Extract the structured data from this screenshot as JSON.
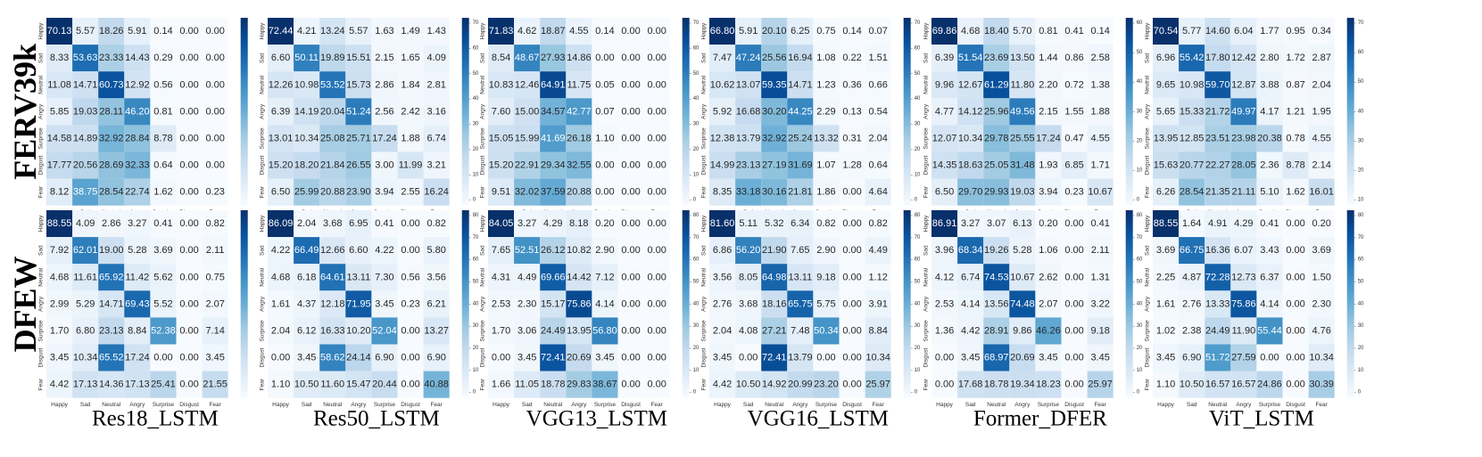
{
  "figure": {
    "row_labels": [
      "FERV39k",
      "DFEW"
    ],
    "model_names": [
      "Res18_LSTM",
      "Res50_LSTM",
      "VGG13_LSTM",
      "VGG16_LSTM",
      "Former_DFER",
      "ViT_LSTM"
    ],
    "classes": [
      "Happy",
      "Sad",
      "Neutral",
      "Angry",
      "Surprise",
      "Disgust",
      "Fear"
    ]
  },
  "colors": {
    "low": "#f7fbff",
    "high": "#08306b",
    "dark_text": "#262626",
    "light_text": "#ffffff"
  },
  "chart_data": [
    {
      "type": "heatmap",
      "dataset": "FERV39k",
      "model": "Res18_LSTM",
      "categories": [
        "Happy",
        "Sad",
        "Neutral",
        "Angry",
        "Surprise",
        "Disgust",
        "Fear"
      ],
      "values": [
        [
          70.13,
          5.57,
          18.26,
          5.91,
          0.14,
          0.0,
          0.0
        ],
        [
          8.33,
          53.63,
          23.33,
          14.43,
          0.29,
          0.0,
          0.0
        ],
        [
          11.08,
          14.71,
          60.73,
          12.92,
          0.56,
          0.0,
          0.0
        ],
        [
          5.85,
          19.03,
          28.11,
          46.2,
          0.81,
          0.0,
          0.0
        ],
        [
          14.58,
          14.89,
          32.92,
          28.84,
          8.78,
          0.0,
          0.0
        ],
        [
          17.77,
          20.56,
          28.69,
          32.33,
          0.64,
          0.0,
          0.0
        ],
        [
          8.12,
          38.75,
          28.54,
          22.74,
          1.62,
          0.0,
          0.23
        ]
      ],
      "colorbar_ticks": []
    },
    {
      "type": "heatmap",
      "dataset": "FERV39k",
      "model": "Res50_LSTM",
      "categories": [
        "Happy",
        "Sad",
        "Neutral",
        "Angry",
        "Surprise",
        "Disgust",
        "Fear"
      ],
      "values": [
        [
          72.44,
          4.21,
          13.24,
          5.57,
          1.63,
          1.49,
          1.43
        ],
        [
          6.6,
          50.11,
          19.89,
          15.51,
          2.15,
          1.65,
          4.09
        ],
        [
          12.26,
          10.98,
          53.52,
          15.73,
          2.86,
          1.84,
          2.81
        ],
        [
          6.39,
          14.19,
          20.04,
          51.24,
          2.56,
          2.42,
          3.16
        ],
        [
          13.01,
          10.34,
          25.08,
          25.71,
          17.24,
          1.88,
          6.74
        ],
        [
          15.2,
          18.2,
          21.84,
          26.55,
          3.0,
          11.99,
          3.21
        ],
        [
          6.5,
          25.99,
          20.88,
          23.9,
          3.94,
          2.55,
          16.24
        ]
      ],
      "colorbar_ticks": [
        "70",
        "60",
        "50",
        "40",
        "30",
        "20",
        "10",
        "0"
      ]
    },
    {
      "type": "heatmap",
      "dataset": "FERV39k",
      "model": "VGG13_LSTM",
      "categories": [
        "Happy",
        "Sad",
        "Neutral",
        "Angry",
        "Surprise",
        "Disgust",
        "Fear"
      ],
      "values": [
        [
          71.83,
          4.62,
          18.87,
          4.55,
          0.14,
          0.0,
          0.0
        ],
        [
          8.54,
          48.67,
          27.93,
          14.86,
          0.0,
          0.0,
          0.0
        ],
        [
          10.83,
          12.46,
          64.91,
          11.75,
          0.05,
          0.0,
          0.0
        ],
        [
          7.6,
          15.0,
          34.57,
          42.77,
          0.07,
          0.0,
          0.0
        ],
        [
          15.05,
          15.99,
          41.69,
          26.18,
          1.1,
          0.0,
          0.0
        ],
        [
          15.2,
          22.91,
          29.34,
          32.55,
          0.0,
          0.0,
          0.0
        ],
        [
          9.51,
          32.02,
          37.59,
          20.88,
          0.0,
          0.0,
          0.0
        ]
      ],
      "colorbar_ticks": [
        "70",
        "60",
        "50",
        "40",
        "30",
        "20",
        "10",
        "0"
      ]
    },
    {
      "type": "heatmap",
      "dataset": "FERV39k",
      "model": "VGG16_LSTM",
      "categories": [
        "Happy",
        "Sad",
        "Neutral",
        "Angry",
        "Surprise",
        "Disgust",
        "Fear"
      ],
      "values": [
        [
          66.8,
          5.91,
          20.1,
          6.25,
          0.75,
          0.14,
          0.07
        ],
        [
          7.47,
          47.24,
          25.56,
          16.94,
          1.08,
          0.22,
          1.51
        ],
        [
          10.62,
          13.07,
          59.35,
          14.71,
          1.23,
          0.36,
          0.66
        ],
        [
          5.92,
          16.68,
          30.2,
          44.25,
          2.29,
          0.13,
          0.54
        ],
        [
          12.38,
          13.79,
          32.92,
          25.24,
          13.32,
          0.31,
          2.04
        ],
        [
          14.99,
          23.13,
          27.19,
          31.69,
          1.07,
          1.28,
          0.64
        ],
        [
          8.35,
          33.18,
          30.16,
          21.81,
          1.86,
          0.0,
          4.64
        ]
      ],
      "colorbar_ticks": [
        "70",
        "60",
        "50",
        "40",
        "30",
        "20",
        "10",
        "0"
      ]
    },
    {
      "type": "heatmap",
      "dataset": "FERV39k",
      "model": "Former_DFER",
      "categories": [
        "Happy",
        "Sad",
        "Neutral",
        "Angry",
        "Surprise",
        "Disgust",
        "Fear"
      ],
      "values": [
        [
          69.86,
          4.68,
          18.4,
          5.7,
          0.81,
          0.41,
          0.14
        ],
        [
          6.39,
          51.54,
          23.69,
          13.5,
          1.44,
          0.86,
          2.58
        ],
        [
          9.96,
          12.67,
          61.29,
          11.8,
          2.2,
          0.72,
          1.38
        ],
        [
          4.77,
          14.12,
          25.96,
          49.56,
          2.15,
          1.55,
          1.88
        ],
        [
          12.07,
          10.34,
          29.78,
          25.55,
          17.24,
          0.47,
          4.55
        ],
        [
          14.35,
          18.63,
          25.05,
          31.48,
          1.93,
          6.85,
          1.71
        ],
        [
          6.5,
          29.7,
          29.93,
          19.03,
          3.94,
          0.23,
          10.67
        ]
      ],
      "colorbar_ticks": [
        "60",
        "50",
        "40",
        "30",
        "20",
        "10",
        "0"
      ]
    },
    {
      "type": "heatmap",
      "dataset": "FERV39k",
      "model": "ViT_LSTM",
      "categories": [
        "Happy",
        "Sad",
        "Neutral",
        "Angry",
        "Surprise",
        "Disgust",
        "Fear"
      ],
      "values": [
        [
          70.54,
          5.77,
          14.6,
          6.04,
          1.77,
          0.95,
          0.34
        ],
        [
          6.96,
          55.42,
          17.8,
          12.42,
          2.8,
          1.72,
          2.87
        ],
        [
          9.65,
          10.98,
          59.7,
          12.87,
          3.88,
          0.87,
          2.04
        ],
        [
          5.65,
          15.33,
          21.72,
          49.97,
          4.17,
          1.21,
          1.95
        ],
        [
          13.95,
          12.85,
          23.51,
          23.98,
          20.38,
          0.78,
          4.55
        ],
        [
          15.63,
          20.77,
          22.27,
          28.05,
          2.36,
          8.78,
          2.14
        ],
        [
          6.26,
          28.54,
          21.35,
          21.11,
          5.1,
          1.62,
          16.01
        ]
      ],
      "colorbar_ticks": [
        "70",
        "60",
        "50",
        "40",
        "30",
        "20",
        "10"
      ]
    },
    {
      "type": "heatmap",
      "dataset": "DFEW",
      "model": "Res18_LSTM",
      "categories": [
        "Happy",
        "Sad",
        "Neutral",
        "Angry",
        "Surprise",
        "Disgust",
        "Fear"
      ],
      "values": [
        [
          88.55,
          4.09,
          2.86,
          3.27,
          0.41,
          0.0,
          0.82
        ],
        [
          7.92,
          62.01,
          19.0,
          5.28,
          3.69,
          0.0,
          2.11
        ],
        [
          4.68,
          11.61,
          65.92,
          11.42,
          5.62,
          0.0,
          0.75
        ],
        [
          2.99,
          5.29,
          14.71,
          69.43,
          5.52,
          0.0,
          2.07
        ],
        [
          1.7,
          6.8,
          23.13,
          8.84,
          52.38,
          0.0,
          7.14
        ],
        [
          3.45,
          10.34,
          65.52,
          17.24,
          0.0,
          0.0,
          3.45
        ],
        [
          4.42,
          17.13,
          14.36,
          17.13,
          25.41,
          0.0,
          21.55
        ]
      ],
      "colorbar_ticks": []
    },
    {
      "type": "heatmap",
      "dataset": "DFEW",
      "model": "Res50_LSTM",
      "categories": [
        "Happy",
        "Sad",
        "Neutral",
        "Angry",
        "Surprise",
        "Disgust",
        "Fear"
      ],
      "values": [
        [
          86.09,
          2.04,
          3.68,
          6.95,
          0.41,
          0.0,
          0.82
        ],
        [
          4.22,
          66.49,
          12.66,
          6.6,
          4.22,
          0.0,
          5.8
        ],
        [
          4.68,
          6.18,
          64.61,
          13.11,
          7.3,
          0.56,
          3.56
        ],
        [
          1.61,
          4.37,
          12.18,
          71.95,
          3.45,
          0.23,
          6.21
        ],
        [
          2.04,
          6.12,
          16.33,
          10.2,
          52.04,
          0.0,
          13.27
        ],
        [
          0.0,
          3.45,
          58.62,
          24.14,
          6.9,
          0.0,
          6.9
        ],
        [
          1.1,
          10.5,
          11.6,
          15.47,
          20.44,
          0.0,
          40.88
        ]
      ],
      "colorbar_ticks": [
        "80",
        "70",
        "60",
        "50",
        "40",
        "30",
        "20",
        "10",
        "0"
      ]
    },
    {
      "type": "heatmap",
      "dataset": "DFEW",
      "model": "VGG13_LSTM",
      "categories": [
        "Happy",
        "Sad",
        "Neutral",
        "Angry",
        "Surprise",
        "Disgust",
        "Fear"
      ],
      "values": [
        [
          84.05,
          3.27,
          4.29,
          8.18,
          0.2,
          0.0,
          0.0
        ],
        [
          7.65,
          52.51,
          26.12,
          10.82,
          2.9,
          0.0,
          0.0
        ],
        [
          4.31,
          4.49,
          69.66,
          14.42,
          7.12,
          0.0,
          0.0
        ],
        [
          2.53,
          2.3,
          15.17,
          75.86,
          4.14,
          0.0,
          0.0
        ],
        [
          1.7,
          3.06,
          24.49,
          13.95,
          56.8,
          0.0,
          0.0
        ],
        [
          0.0,
          3.45,
          72.41,
          20.69,
          3.45,
          0.0,
          0.0
        ],
        [
          1.66,
          11.05,
          18.78,
          29.83,
          38.67,
          0.0,
          0.0
        ]
      ],
      "colorbar_ticks": [
        "80",
        "70",
        "60",
        "50",
        "40",
        "30",
        "20",
        "10",
        "0"
      ]
    },
    {
      "type": "heatmap",
      "dataset": "DFEW",
      "model": "VGG16_LSTM",
      "categories": [
        "Happy",
        "Sad",
        "Neutral",
        "Angry",
        "Surprise",
        "Disgust",
        "Fear"
      ],
      "values": [
        [
          81.6,
          5.11,
          5.32,
          6.34,
          0.82,
          0.0,
          0.82
        ],
        [
          6.86,
          56.2,
          21.9,
          7.65,
          2.9,
          0.0,
          4.49
        ],
        [
          3.56,
          8.05,
          64.98,
          13.11,
          9.18,
          0.0,
          1.12
        ],
        [
          2.76,
          3.68,
          18.16,
          65.75,
          5.75,
          0.0,
          3.91
        ],
        [
          2.04,
          4.08,
          27.21,
          7.48,
          50.34,
          0.0,
          8.84
        ],
        [
          3.45,
          0.0,
          72.41,
          13.79,
          0.0,
          0.0,
          10.34
        ],
        [
          4.42,
          10.5,
          14.92,
          20.99,
          23.2,
          0.0,
          25.97
        ]
      ],
      "colorbar_ticks": [
        "80",
        "70",
        "60",
        "50",
        "40",
        "30",
        "20",
        "10",
        "0"
      ]
    },
    {
      "type": "heatmap",
      "dataset": "DFEW",
      "model": "Former_DFER",
      "categories": [
        "Happy",
        "Sad",
        "Neutral",
        "Angry",
        "Surprise",
        "Disgust",
        "Fear"
      ],
      "values": [
        [
          86.91,
          3.27,
          3.07,
          6.13,
          0.2,
          0.0,
          0.41
        ],
        [
          3.96,
          68.34,
          19.26,
          5.28,
          1.06,
          0.0,
          2.11
        ],
        [
          4.12,
          6.74,
          74.53,
          10.67,
          2.62,
          0.0,
          1.31
        ],
        [
          2.53,
          4.14,
          13.56,
          74.48,
          2.07,
          0.0,
          3.22
        ],
        [
          1.36,
          4.42,
          28.91,
          9.86,
          46.26,
          0.0,
          9.18
        ],
        [
          0.0,
          3.45,
          68.97,
          20.69,
          3.45,
          0.0,
          3.45
        ],
        [
          0.0,
          17.68,
          18.78,
          19.34,
          18.23,
          0.0,
          25.97
        ]
      ],
      "colorbar_ticks": [
        "80",
        "70",
        "60",
        "50",
        "40",
        "30",
        "20",
        "10",
        "0"
      ]
    },
    {
      "type": "heatmap",
      "dataset": "DFEW",
      "model": "ViT_LSTM",
      "categories": [
        "Happy",
        "Sad",
        "Neutral",
        "Angry",
        "Surprise",
        "Disgust",
        "Fear"
      ],
      "values": [
        [
          88.55,
          1.64,
          4.91,
          4.29,
          0.41,
          0.0,
          0.2
        ],
        [
          3.69,
          66.75,
          16.36,
          6.07,
          3.43,
          0.0,
          3.69
        ],
        [
          2.25,
          4.87,
          72.28,
          12.73,
          6.37,
          0.0,
          1.5
        ],
        [
          1.61,
          2.76,
          13.33,
          75.86,
          4.14,
          0.0,
          2.3
        ],
        [
          1.02,
          2.38,
          24.49,
          11.9,
          55.44,
          0.0,
          4.76
        ],
        [
          3.45,
          6.9,
          51.72,
          27.59,
          0.0,
          0.0,
          10.34
        ],
        [
          1.1,
          10.5,
          16.57,
          16.57,
          24.86,
          0.0,
          30.39
        ]
      ],
      "colorbar_ticks": [
        "80",
        "70",
        "60",
        "50",
        "40",
        "30",
        "20",
        "10",
        "0"
      ]
    }
  ]
}
